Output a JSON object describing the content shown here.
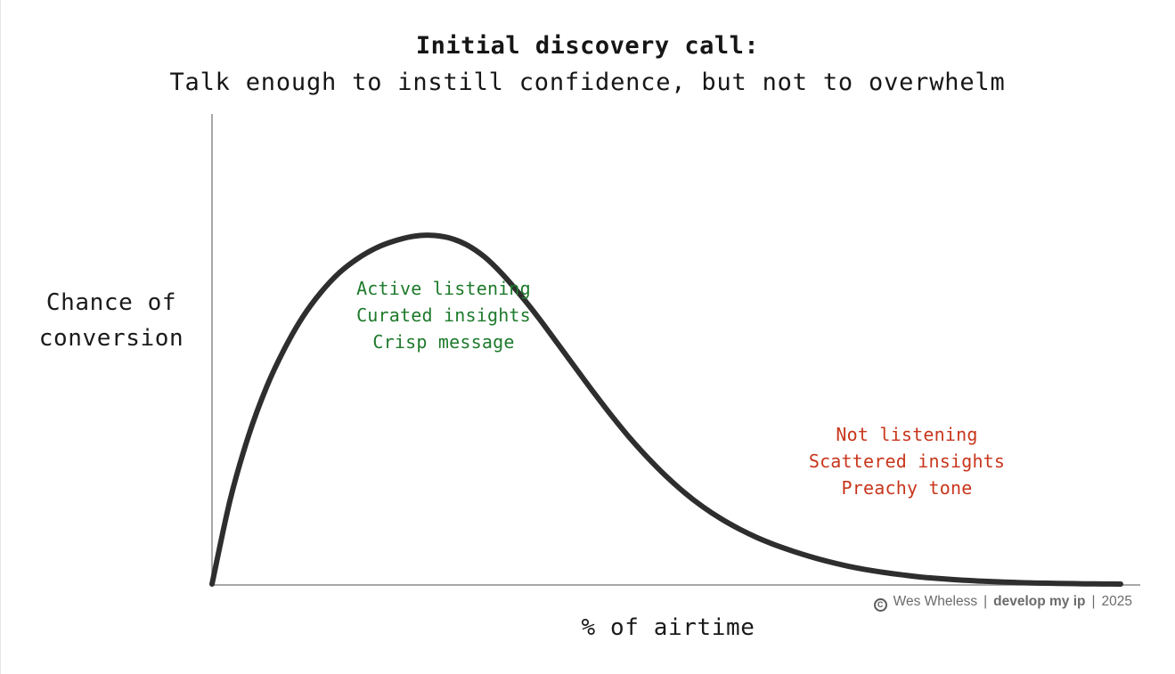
{
  "chart_data": {
    "type": "line",
    "title": "Initial discovery call:",
    "subtitle": "Talk enough to instill confidence, but not to overwhelm",
    "xlabel": "% of airtime",
    "ylabel": [
      "Chance of",
      "conversion"
    ],
    "xlim": [
      0,
      100
    ],
    "ylim": [
      0,
      100
    ],
    "grid": false,
    "legend": "none",
    "series": [
      {
        "x": [
          0,
          2,
          4,
          6,
          8,
          10,
          12,
          14,
          16,
          18,
          20,
          22,
          24,
          26,
          28,
          30,
          32,
          34,
          36,
          38,
          40,
          42,
          44,
          46,
          48,
          50,
          52,
          54,
          56,
          58,
          60,
          62,
          64,
          66,
          68,
          70,
          72,
          74,
          76,
          78,
          80,
          82,
          84,
          86,
          88,
          90,
          92,
          94,
          96,
          98,
          100
        ],
        "y": [
          0,
          24,
          42,
          56,
          67,
          76,
          83,
          88.5,
          92.5,
          95.5,
          97.5,
          98.8,
          99.2,
          98.5,
          96.5,
          93,
          88,
          82,
          75.5,
          68.5,
          61.5,
          54.5,
          47.8,
          41.5,
          35.8,
          30.6,
          26,
          22,
          18.6,
          15.7,
          13.2,
          11.1,
          9.3,
          7.7,
          6.3,
          5.1,
          4.1,
          3.3,
          2.6,
          2,
          1.6,
          1.2,
          0.9,
          0.7,
          0.5,
          0.35,
          0.25,
          0.15,
          0.08,
          0.03,
          0
        ]
      }
    ],
    "color": "#2e2e2e",
    "annotations": [
      {
        "lines": [
          "Active listening",
          "Curated insights",
          "Crisp message"
        ],
        "color": "#1e7a2c"
      },
      {
        "lines": [
          "Not listening",
          "Scattered insights",
          "Preachy tone"
        ],
        "color": "#c8361c"
      }
    ]
  },
  "credit": {
    "copyright_symbol": "C",
    "author": "Wes Wheless",
    "separator": "|",
    "brand": "develop my ip",
    "year": "2025"
  }
}
